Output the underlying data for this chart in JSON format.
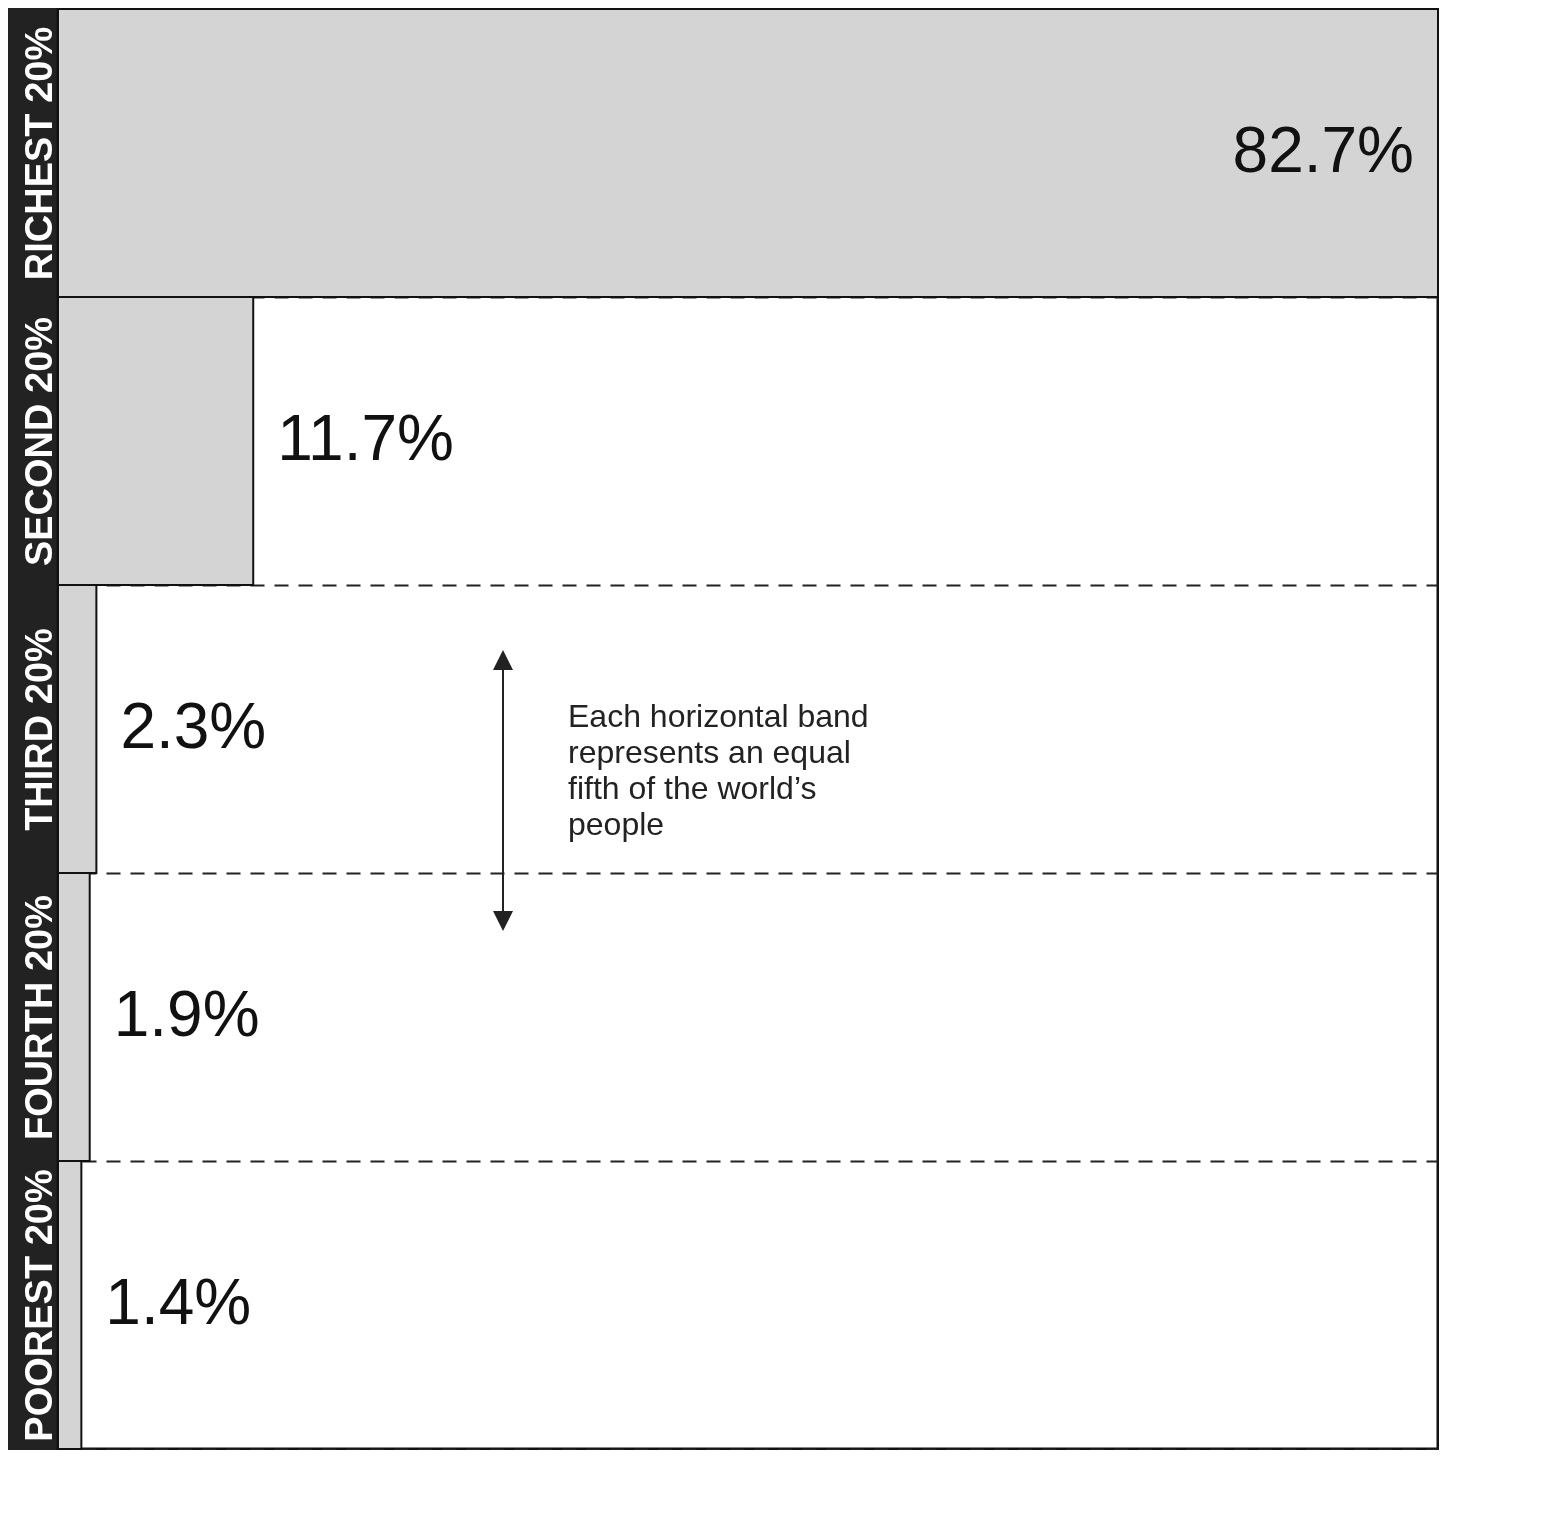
{
  "chart_data": {
    "type": "bar",
    "orientation": "horizontal",
    "categories": [
      "RICHEST 20%",
      "SECOND 20%",
      "THIRD 20%",
      "FOURTH 20%",
      "POOREST 20%"
    ],
    "values": [
      82.7,
      11.7,
      2.3,
      1.9,
      1.4
    ],
    "value_labels": [
      "82.7%",
      "11.7%",
      "2.3%",
      "1.9%",
      "1.4%"
    ],
    "color": "#d4d4d4",
    "grid": "y",
    "annotations": [
      "Each horizontal band represents an equal fifth of the world’s people"
    ]
  }
}
